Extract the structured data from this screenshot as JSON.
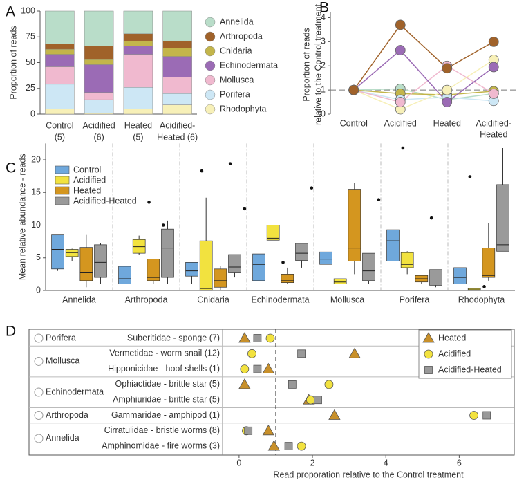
{
  "chart_data": [
    {
      "type": "stacked_bar",
      "label": "A",
      "ylabel": "Proportion of reads",
      "categories": [
        [
          "Control",
          "(5)"
        ],
        [
          "Acidified",
          "(6)"
        ],
        [
          "Heated",
          "(5)"
        ],
        [
          "Acidified-",
          "Heated (6)"
        ]
      ],
      "ylim": [
        0,
        100
      ],
      "yticks": [
        0,
        25,
        50,
        75,
        100
      ],
      "series": [
        {
          "name": "Annelida",
          "color": "#b9ddc9",
          "values": [
            32,
            34,
            22,
            29
          ]
        },
        {
          "name": "Arthropoda",
          "color": "#a0622a",
          "values": [
            5,
            13,
            7,
            7
          ]
        },
        {
          "name": "Cnidaria",
          "color": "#c3b54a",
          "values": [
            5,
            5,
            5,
            8
          ]
        },
        {
          "name": "Echinodermata",
          "color": "#9b6bb5",
          "values": [
            12,
            27,
            8,
            20
          ]
        },
        {
          "name": "Mollusca",
          "color": "#f0b9cf",
          "values": [
            17,
            7,
            32,
            16
          ]
        },
        {
          "name": "Porifera",
          "color": "#cde7f5",
          "values": [
            24,
            13,
            21,
            11
          ]
        },
        {
          "name": "Rhodophyta",
          "color": "#f7f0b8",
          "values": [
            5,
            1,
            5,
            9
          ]
        }
      ]
    },
    {
      "type": "line",
      "label": "B",
      "ylabel": [
        "Proportion of reads",
        "relative to the Control treatment"
      ],
      "categories": [
        [
          "Control"
        ],
        [
          "Acidified"
        ],
        [
          "Heated"
        ],
        [
          "Acidified-",
          "Heated"
        ]
      ],
      "ylim": [
        0,
        4.1
      ],
      "yticks": [
        0,
        1,
        2,
        3,
        4
      ],
      "reference_line": 1,
      "series": [
        {
          "name": "Annelida",
          "color": "#b9ddc9",
          "values": [
            1,
            1.05,
            0.6,
            0.85
          ]
        },
        {
          "name": "Cnidaria",
          "color": "#c3b54a",
          "values": [
            1,
            0.85,
            0.8,
            0.95
          ]
        },
        {
          "name": "Porifera",
          "color": "#cde7f5",
          "values": [
            1,
            0.6,
            0.7,
            0.55
          ]
        },
        {
          "name": "Rhodophyta",
          "color": "#f7f0b8",
          "values": [
            1,
            0.2,
            1.0,
            2.25
          ]
        },
        {
          "name": "Mollusca",
          "color": "#f0b9cf",
          "values": [
            1,
            0.5,
            2.0,
            0.85
          ]
        },
        {
          "name": "Echinodermata",
          "color": "#9b6bb5",
          "values": [
            1,
            2.65,
            0.5,
            1.95
          ]
        },
        {
          "name": "Arthropoda",
          "color": "#a0622a",
          "values": [
            1,
            3.7,
            1.9,
            3.0
          ]
        }
      ]
    },
    {
      "type": "box",
      "label": "C",
      "ylabel": "Mean relative abundance - reads",
      "categories": [
        "Annelida",
        "Arthropoda",
        "Cnidaria",
        "Echinodermata",
        "Mollusca",
        "Porifera",
        "Rhodophyta"
      ],
      "ylim": [
        0,
        22.5
      ],
      "yticks": [
        0,
        5,
        10,
        15,
        20
      ],
      "series": [
        {
          "name": "Control",
          "color": "#6fa8dc",
          "boxes": [
            [
              3,
              3.3,
              6.3,
              8.5,
              8.5
            ],
            [
              1,
              1,
              1.8,
              3.7,
              3.7
            ],
            [
              1,
              2.2,
              3,
              4.3,
              4.3
            ],
            [
              1,
              1.5,
              4,
              5.6,
              5.6
            ],
            [
              3.5,
              4,
              4.8,
              5.9,
              6.2
            ],
            [
              3,
              4.5,
              7.6,
              9.3,
              11
            ],
            [
              1,
              1,
              2,
              3.5,
              3.5
            ]
          ],
          "outliers": [
            [],
            [],
            [
              18.3
            ],
            [],
            [],
            [
              21.8
            ],
            [
              17.4
            ]
          ]
        },
        {
          "name": "Acidified",
          "color": "#f2e23f",
          "boxes": [
            [
              4.5,
              5.2,
              5.8,
              6.3,
              6.4
            ],
            [
              5.5,
              5.7,
              6.7,
              7.8,
              8.4
            ],
            [
              0,
              0,
              0.3,
              7.6,
              14.2
            ],
            [
              7.7,
              7.7,
              8,
              10,
              10
            ],
            [
              1,
              1,
              1.3,
              1.8,
              1.8
            ],
            [
              2.5,
              3.5,
              4,
              5.8,
              6
            ],
            [
              0,
              0,
              0.1,
              0.3,
              0.4
            ]
          ],
          "outliers": [
            [
              4.2
            ],
            [
              13.5
            ],
            [],
            [
              4.3
            ],
            [],
            [],
            [
              0.6
            ]
          ]
        },
        {
          "name": "Heated",
          "color": "#d4961f",
          "boxes": [
            [
              0.5,
              1.5,
              2.8,
              6.6,
              8.5
            ],
            [
              1,
              1.5,
              2,
              4.8,
              4.8
            ],
            [
              0,
              0.5,
              1.5,
              3.3,
              3.8
            ],
            [
              1,
              1.2,
              1.5,
              2.5,
              3.5
            ],
            [
              2.5,
              4.5,
              6.5,
              15.5,
              16.5
            ],
            [
              1,
              1.3,
              1.8,
              2.3,
              2.3
            ],
            [
              1.5,
              2,
              2.3,
              6.5,
              10.3
            ]
          ],
          "outliers": [
            [],
            [
              10
            ],
            [
              19.4
            ],
            [],
            [],
            [
              11.1
            ],
            []
          ]
        },
        {
          "name": "Acidified-Heated",
          "color": "#9a9a9a",
          "boxes": [
            [
              1,
              2,
              4.3,
              7,
              7.2
            ],
            [
              1,
              2,
              6.5,
              9.4,
              10.7
            ],
            [
              2,
              2.8,
              3.6,
              5.5,
              5.5
            ],
            [
              3.5,
              4.6,
              5.7,
              7.2,
              7.2
            ],
            [
              1,
              1.5,
              3,
              5.7,
              5.7
            ],
            [
              0.5,
              0.8,
              1,
              3.2,
              3.2
            ],
            [
              6,
              6,
              7,
              16.2,
              21.8
            ]
          ],
          "outliers": [
            [],
            [],
            [
              12.5
            ],
            [
              15.7
            ],
            [
              13.9
            ],
            [],
            []
          ]
        }
      ]
    },
    {
      "type": "dot",
      "label": "D",
      "xlabel": "Read proporation relative to the Control treatment",
      "groups": [
        {
          "name": "Porifera",
          "families": [
            "Suberitidae - sponge (7)"
          ]
        },
        {
          "name": "Mollusca",
          "families": [
            "Vermetidae - worm snail (12)",
            "Hipponicidae - hoof shells (1)"
          ]
        },
        {
          "name": "Echinodermata",
          "families": [
            "Ophiactidae - brittle star (5)",
            "Amphiuridae - brittle star (5)"
          ]
        },
        {
          "name": "Arthropoda",
          "families": [
            "Gammaridae - amphipod (1)"
          ]
        },
        {
          "name": "Annelida",
          "families": [
            "Cirratulidae - bristle worms (8)",
            "Amphinomidae - fire worms (3)"
          ]
        }
      ],
      "xlim": [
        -0.45,
        7.5
      ],
      "xticks": [
        0,
        2,
        4,
        6
      ],
      "reference_line": 1,
      "series": [
        {
          "name": "Heated",
          "color": "#c8902a",
          "marker": "triangle",
          "values": [
            0.15,
            3.15,
            0.8,
            0.15,
            1.9,
            2.6,
            0.8,
            0.95
          ]
        },
        {
          "name": "Acidified",
          "color": "#f2e23f",
          "marker": "circle",
          "values": [
            0.85,
            0.35,
            0.15,
            2.45,
            1.95,
            6.4,
            0.2,
            1.7
          ]
        },
        {
          "name": "Acidified-Heated",
          "color": "#999999",
          "marker": "square",
          "values": [
            0.5,
            1.7,
            0.5,
            1.45,
            2.15,
            6.75,
            0.25,
            1.35
          ]
        }
      ]
    }
  ]
}
